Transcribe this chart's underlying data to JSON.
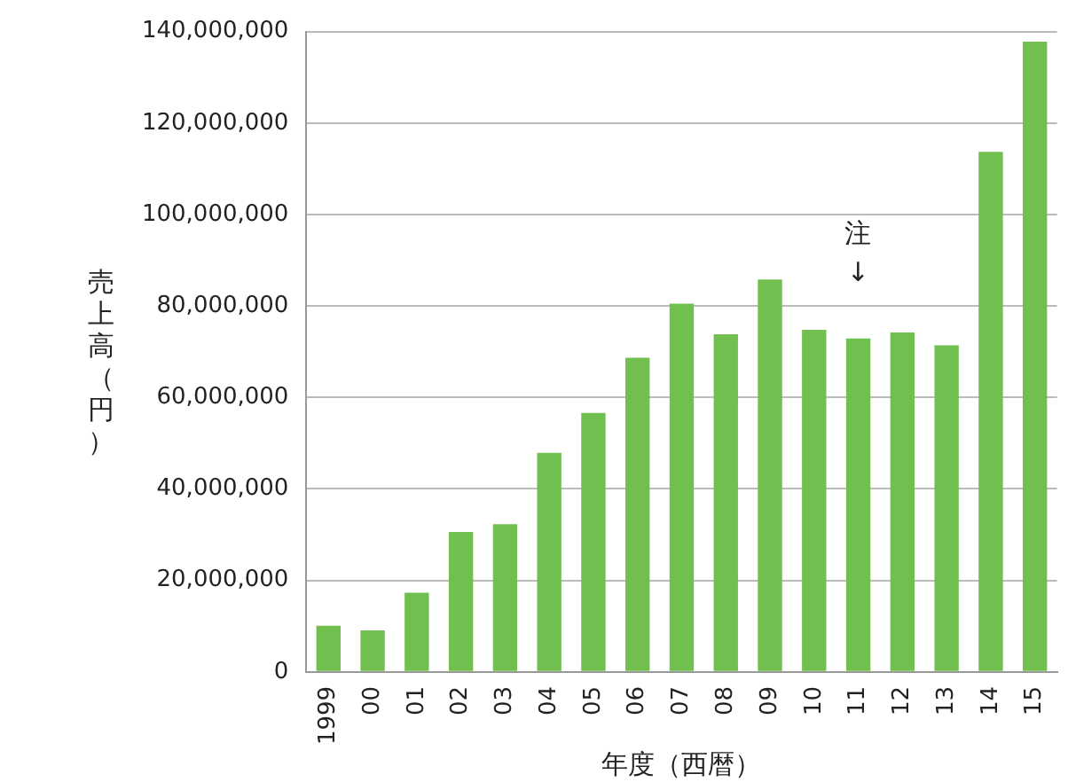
{
  "chart_data": {
    "type": "bar",
    "xlabel": "年度（西暦）",
    "ylabel": "売上高（円）",
    "categories": [
      "1999",
      "00",
      "01",
      "02",
      "03",
      "04",
      "05",
      "06",
      "07",
      "08",
      "09",
      "10",
      "11",
      "12",
      "13",
      "14",
      "15"
    ],
    "values": [
      10100000,
      9100000,
      17300000,
      30600000,
      32300000,
      47900000,
      56600000,
      68700000,
      80500000,
      73800000,
      85800000,
      74800000,
      72900000,
      74200000,
      71400000,
      113700000,
      137800000
    ],
    "color": "#70bf4f",
    "ylim": [
      0,
      140000000
    ],
    "yticks": [
      0,
      {
        "value": 20000000,
        "label": "20,000,000"
      },
      {
        "value": 40000000,
        "label": "40,000,000"
      },
      {
        "value": 60000000,
        "label": "60,000,000"
      },
      {
        "value": 80000000,
        "label": "80,000,000"
      },
      {
        "value": 100000000,
        "label": "100,000,000"
      },
      {
        "value": 120000000,
        "label": "120,000,000"
      },
      {
        "value": 140000000,
        "label": "140,000,000"
      }
    ],
    "grid": "y",
    "legend": false,
    "annotations": [
      "注\n↓"
    ]
  }
}
